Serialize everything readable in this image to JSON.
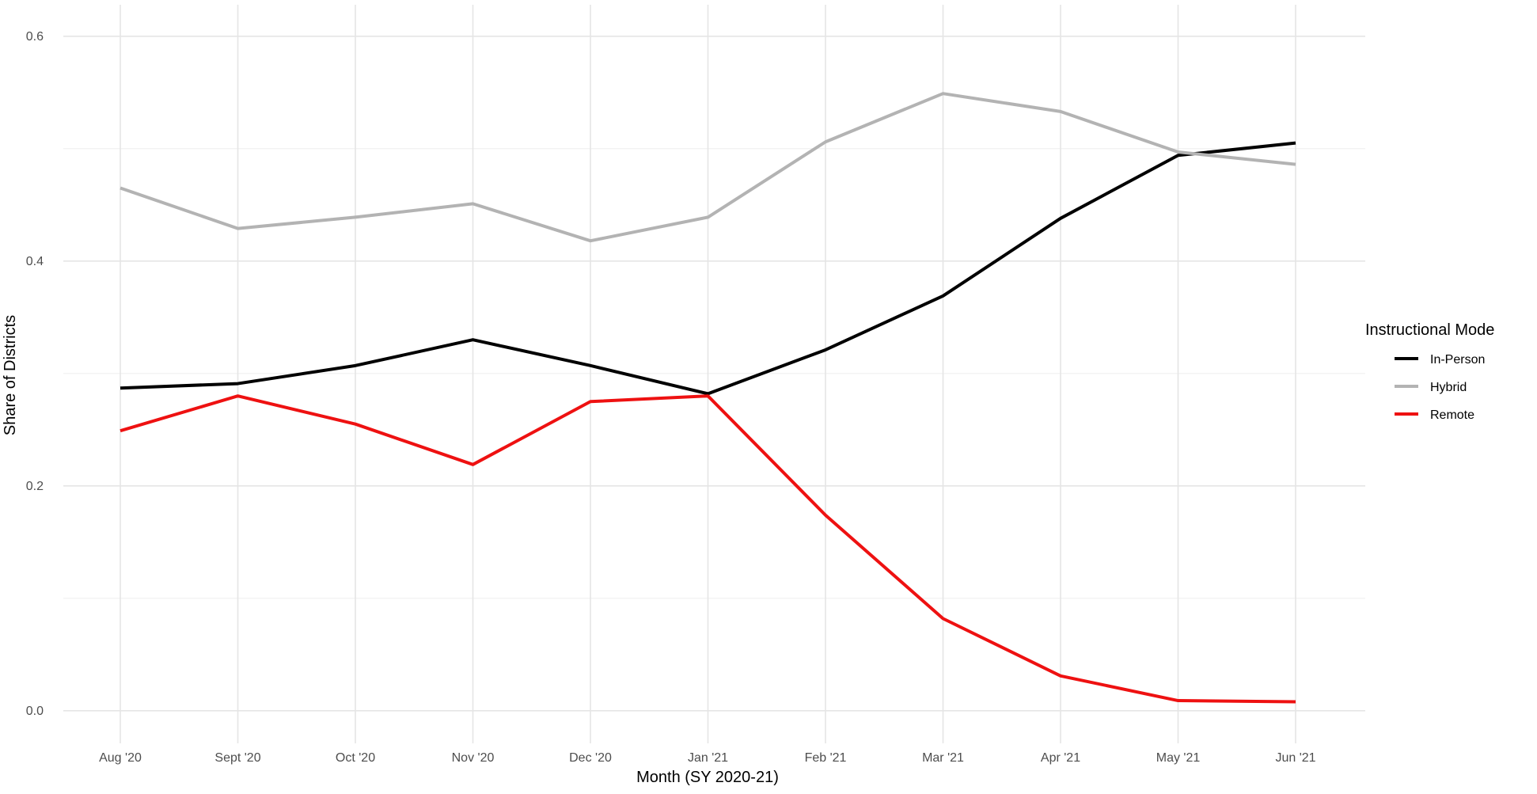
{
  "chart_data": {
    "type": "line",
    "x_label": "Month (SY 2020-21)",
    "y_label": "Share of Districts",
    "categories": [
      "Aug '20",
      "Sept '20",
      "Oct '20",
      "Nov '20",
      "Dec '20",
      "Jan '21",
      "Feb '21",
      "Mar '21",
      "Apr '21",
      "May '21",
      "Jun '21"
    ],
    "series": [
      {
        "name": "In-Person",
        "color": "#000000",
        "values": [
          0.287,
          0.291,
          0.307,
          0.33,
          0.307,
          0.282,
          0.321,
          0.369,
          0.438,
          0.494,
          0.505
        ]
      },
      {
        "name": "Hybrid",
        "color": "#b3b3b3",
        "values": [
          0.465,
          0.429,
          0.439,
          0.451,
          0.418,
          0.439,
          0.506,
          0.549,
          0.533,
          0.497,
          0.486
        ]
      },
      {
        "name": "Remote",
        "color": "#ee1111",
        "values": [
          0.249,
          0.28,
          0.255,
          0.219,
          0.275,
          0.28,
          0.174,
          0.082,
          0.031,
          0.009,
          0.008
        ]
      }
    ],
    "ylim": [
      -0.029,
      0.628
    ],
    "yticks": [
      {
        "value": 0,
        "label": "0.0"
      },
      0.2,
      0.4,
      0.6
    ],
    "grid": true,
    "legend_title": "Instructional Mode",
    "legend": "right"
  }
}
